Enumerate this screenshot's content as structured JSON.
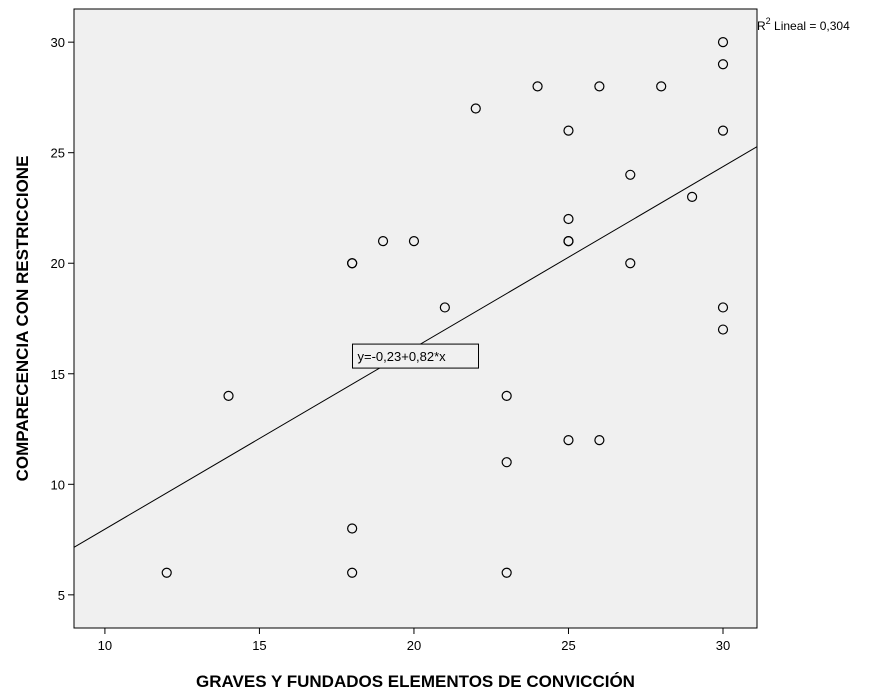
{
  "chart_data": {
    "type": "scatter",
    "xlabel": "GRAVES Y FUNDADOS ELEMENTOS DE CONVICCIÓN",
    "ylabel": "COMPARECENCIA CON RESTRICCIONE",
    "xlim": [
      9,
      31.1
    ],
    "ylim": [
      3.5,
      31.5
    ],
    "x_ticks": [
      10,
      15,
      20,
      25,
      30
    ],
    "y_ticks": [
      5,
      10,
      15,
      20,
      25,
      30
    ],
    "grid": false,
    "background_color": "#f0f0f0",
    "marker_color": "#000000",
    "points": [
      {
        "x": 12,
        "y": 6
      },
      {
        "x": 14,
        "y": 14
      },
      {
        "x": 18,
        "y": 20
      },
      {
        "x": 18,
        "y": 20
      },
      {
        "x": 18,
        "y": 8
      },
      {
        "x": 18,
        "y": 6
      },
      {
        "x": 19,
        "y": 21
      },
      {
        "x": 20,
        "y": 21
      },
      {
        "x": 21,
        "y": 18
      },
      {
        "x": 22,
        "y": 27
      },
      {
        "x": 23,
        "y": 14
      },
      {
        "x": 23,
        "y": 11
      },
      {
        "x": 23,
        "y": 6
      },
      {
        "x": 24,
        "y": 28
      },
      {
        "x": 25,
        "y": 26
      },
      {
        "x": 25,
        "y": 22
      },
      {
        "x": 25,
        "y": 21
      },
      {
        "x": 25,
        "y": 21
      },
      {
        "x": 25,
        "y": 12
      },
      {
        "x": 26,
        "y": 28
      },
      {
        "x": 26,
        "y": 12
      },
      {
        "x": 27,
        "y": 24
      },
      {
        "x": 27,
        "y": 20
      },
      {
        "x": 28,
        "y": 28
      },
      {
        "x": 29,
        "y": 23
      },
      {
        "x": 30,
        "y": 30
      },
      {
        "x": 30,
        "y": 29
      },
      {
        "x": 30,
        "y": 26
      },
      {
        "x": 30,
        "y": 18
      },
      {
        "x": 30,
        "y": 17
      }
    ],
    "fit_line": {
      "intercept": -0.23,
      "slope": 0.82
    },
    "equation_label": "y=-0,23+0,82*x",
    "r2_label_base": "R",
    "r2_label_sup": "2",
    "r2_label_rest": " Lineal = 0,304"
  }
}
